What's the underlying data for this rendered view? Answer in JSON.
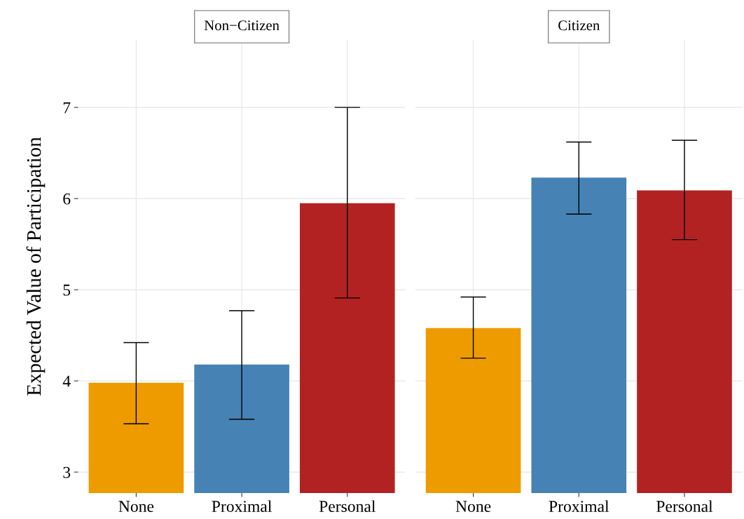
{
  "chart_data": [
    {
      "type": "bar",
      "title": "Non−Citizen",
      "ylabel": "Expected Value of Participation",
      "categories": [
        "None",
        "Proximal",
        "Personal"
      ],
      "values": [
        3.98,
        4.18,
        5.95
      ],
      "colors": [
        "#ee9b00",
        "#4682b4",
        "#b22222"
      ],
      "errors": [
        [
          3.53,
          4.42
        ],
        [
          3.58,
          4.77
        ],
        [
          4.91,
          7.0
        ]
      ],
      "ylim": [
        2.77,
        7.74
      ],
      "yticks": [
        3,
        4,
        5,
        6,
        7
      ],
      "grid": true
    },
    {
      "type": "bar",
      "title": "Citizen",
      "categories": [
        "None",
        "Proximal",
        "Personal"
      ],
      "values": [
        4.58,
        6.23,
        6.09
      ],
      "colors": [
        "#ee9b00",
        "#4682b4",
        "#b22222"
      ],
      "errors": [
        [
          4.25,
          4.92
        ],
        [
          5.83,
          6.62
        ],
        [
          5.55,
          6.64
        ]
      ],
      "ylim": [
        2.77,
        7.74
      ],
      "yticks": [
        3,
        4,
        5,
        6,
        7
      ],
      "grid": true,
      "tick_labels": "x"
    }
  ]
}
